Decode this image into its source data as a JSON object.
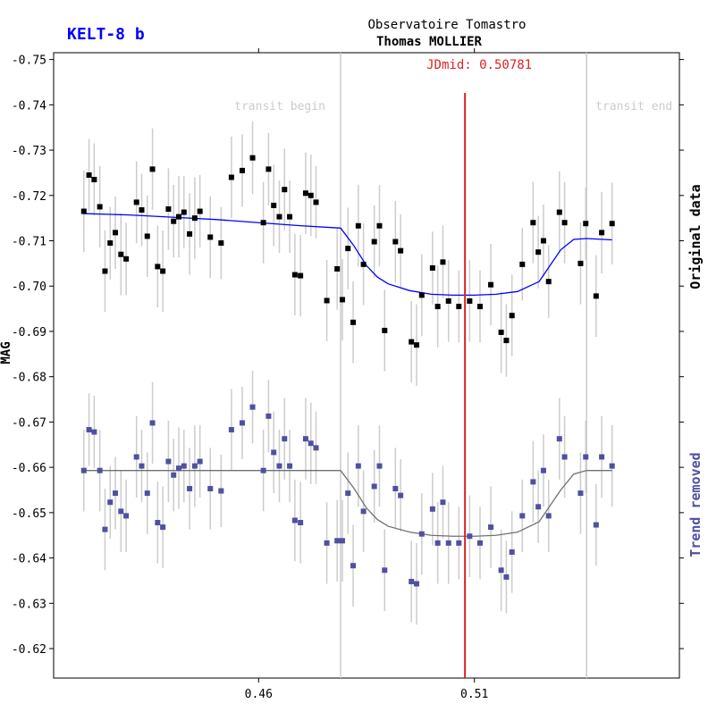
{
  "chart_data": {
    "type": "scatter",
    "title": "KELT-8 b",
    "observatory": "Observatoire Tomastro",
    "observer": "Thomas MOLLIER",
    "jdmid_label": "JDmid: 0.50781",
    "jdmid": 0.50781,
    "transit_begin": 0.479,
    "transit_end": 0.536,
    "transit_begin_label": "transit begin",
    "transit_end_label": "transit end",
    "ylabel": "MAG",
    "xlabel": "",
    "xlim": [
      0.4125,
      0.5575
    ],
    "ylim": [
      -0.7515,
      -0.6135
    ],
    "xticks": [
      0.46,
      0.51
    ],
    "xtick_labels": [
      "0.46",
      "0.51"
    ],
    "yticks": [
      -0.75,
      -0.74,
      -0.73,
      -0.72,
      -0.71,
      -0.7,
      -0.69,
      -0.68,
      -0.67,
      -0.66,
      -0.65,
      -0.64,
      -0.63,
      -0.62
    ],
    "ytick_labels": [
      "-0.75",
      "-0.74",
      "-0.73",
      "-0.72",
      "-0.71",
      "-0.70",
      "-0.69",
      "-0.68",
      "-0.67",
      "-0.66",
      "-0.65",
      "-0.64",
      "-0.63",
      "-0.62"
    ],
    "original_label": "Original data",
    "detrended_label": "Trend removed",
    "colors": {
      "original": "#000000",
      "original_fit": "#0000ff",
      "detrended": "#5050a0",
      "detrended_fit": "#707070",
      "jdmid": "#dd2222",
      "transit": "#cccccc",
      "title": "#0000ff",
      "errorbar": "#cccccc"
    },
    "series": [
      {
        "name": "Original data",
        "x": [
          0.4195,
          0.4207,
          0.4219,
          0.4232,
          0.4244,
          0.4256,
          0.4268,
          0.4281,
          0.4293,
          0.4317,
          0.4329,
          0.4342,
          0.4354,
          0.4366,
          0.4378,
          0.4391,
          0.4403,
          0.4415,
          0.4427,
          0.444,
          0.4452,
          0.4464,
          0.4488,
          0.4513,
          0.4537,
          0.4562,
          0.4586,
          0.4611,
          0.4623,
          0.4635,
          0.4648,
          0.466,
          0.4672,
          0.4684,
          0.4697,
          0.4709,
          0.4721,
          0.4733,
          0.4758,
          0.4782,
          0.4794,
          0.4807,
          0.4819,
          0.4831,
          0.4843,
          0.4868,
          0.488,
          0.4892,
          0.4917,
          0.4929,
          0.4954,
          0.4966,
          0.4978,
          0.5003,
          0.5015,
          0.5027,
          0.504,
          0.5064,
          0.5089,
          0.5113,
          0.5138,
          0.5162,
          0.5174,
          0.5187,
          0.5211,
          0.5236,
          0.5248,
          0.526,
          0.5272,
          0.5297,
          0.5309,
          0.5346,
          0.5358,
          0.5382,
          0.5395,
          0.5419
        ],
        "y": [
          -0.7165,
          -0.7245,
          -0.7235,
          -0.7175,
          -0.7033,
          -0.7095,
          -0.7118,
          -0.707,
          -0.706,
          -0.7185,
          -0.7168,
          -0.711,
          -0.7258,
          -0.7043,
          -0.7033,
          -0.717,
          -0.7143,
          -0.7153,
          -0.7163,
          -0.7115,
          -0.715,
          -0.7165,
          -0.7108,
          -0.7095,
          -0.724,
          -0.7255,
          -0.7283,
          -0.714,
          -0.7258,
          -0.7178,
          -0.7153,
          -0.7213,
          -0.7153,
          -0.7025,
          -0.7023,
          -0.7205,
          -0.72,
          -0.7185,
          -0.6968,
          -0.7038,
          -0.697,
          -0.7083,
          -0.692,
          -0.7133,
          -0.7048,
          -0.7098,
          -0.7133,
          -0.6902,
          -0.7098,
          -0.7078,
          -0.6877,
          -0.687,
          -0.698,
          -0.704,
          -0.6955,
          -0.7053,
          -0.6967,
          -0.6955,
          -0.6967,
          -0.6955,
          -0.7003,
          -0.6898,
          -0.688,
          -0.6935,
          -0.7048,
          -0.714,
          -0.7075,
          -0.71,
          -0.701,
          -0.7163,
          -0.714,
          -0.705,
          -0.7138,
          -0.6978,
          -0.7118,
          -0.7138
        ],
        "errors": [
          0.009,
          0.008,
          0.008,
          0.009,
          0.009,
          0.008,
          0.008,
          0.009,
          0.008,
          0.009,
          0.008,
          0.009,
          0.009,
          0.009,
          0.009,
          0.009,
          0.008,
          0.009,
          0.008,
          0.009,
          0.009,
          0.008,
          0.009,
          0.008,
          0.009,
          0.008,
          0.008,
          0.009,
          0.008,
          0.009,
          0.008,
          0.009,
          0.008,
          0.009,
          0.009,
          0.009,
          0.009,
          0.008,
          0.009,
          0.009,
          0.009,
          0.009,
          0.009,
          0.009,
          0.009,
          0.008,
          0.009,
          0.009,
          0.009,
          0.008,
          0.009,
          0.009,
          0.009,
          0.008,
          0.009,
          0.008,
          0.009,
          0.008,
          0.009,
          0.008,
          0.009,
          0.009,
          0.008,
          0.009,
          0.008,
          0.009,
          0.008,
          0.008,
          0.008,
          0.009,
          0.009,
          0.009,
          0.008,
          0.009,
          0.009,
          0.009
        ]
      },
      {
        "name": "Trend removed",
        "x": [
          0.4195,
          0.4207,
          0.4219,
          0.4232,
          0.4244,
          0.4256,
          0.4268,
          0.4281,
          0.4293,
          0.4317,
          0.4329,
          0.4342,
          0.4354,
          0.4366,
          0.4378,
          0.4391,
          0.4403,
          0.4415,
          0.4427,
          0.444,
          0.4452,
          0.4464,
          0.4488,
          0.4513,
          0.4537,
          0.4562,
          0.4586,
          0.4611,
          0.4623,
          0.4635,
          0.4648,
          0.466,
          0.4672,
          0.4684,
          0.4697,
          0.4709,
          0.4721,
          0.4733,
          0.4758,
          0.4782,
          0.4794,
          0.4807,
          0.4819,
          0.4831,
          0.4843,
          0.4868,
          0.488,
          0.4892,
          0.4917,
          0.4929,
          0.4954,
          0.4966,
          0.4978,
          0.5003,
          0.5015,
          0.5027,
          0.504,
          0.5064,
          0.5089,
          0.5113,
          0.5138,
          0.5162,
          0.5174,
          0.5187,
          0.5211,
          0.5236,
          0.5248,
          0.526,
          0.5272,
          0.5297,
          0.5309,
          0.5346,
          0.5358,
          0.5382,
          0.5395,
          0.5419
        ],
        "y": [
          -0.6593,
          -0.6683,
          -0.6678,
          -0.6593,
          -0.6463,
          -0.6523,
          -0.6543,
          -0.6503,
          -0.6493,
          -0.6623,
          -0.6603,
          -0.6543,
          -0.6698,
          -0.6478,
          -0.6468,
          -0.6613,
          -0.6583,
          -0.6598,
          -0.6603,
          -0.6553,
          -0.6603,
          -0.6613,
          -0.6553,
          -0.6548,
          -0.6683,
          -0.6698,
          -0.6733,
          -0.6593,
          -0.6713,
          -0.6633,
          -0.6603,
          -0.6663,
          -0.6603,
          -0.6483,
          -0.6478,
          -0.6663,
          -0.6653,
          -0.6643,
          -0.6433,
          -0.6438,
          -0.6438,
          -0.6543,
          -0.6383,
          -0.6603,
          -0.6503,
          -0.6558,
          -0.6603,
          -0.6373,
          -0.6553,
          -0.6538,
          -0.6348,
          -0.6343,
          -0.6453,
          -0.6508,
          -0.6433,
          -0.6523,
          -0.6433,
          -0.6433,
          -0.6448,
          -0.6433,
          -0.6468,
          -0.6373,
          -0.6358,
          -0.6413,
          -0.6493,
          -0.6568,
          -0.6513,
          -0.6593,
          -0.6493,
          -0.6663,
          -0.6623,
          -0.6543,
          -0.6623,
          -0.6473,
          -0.6623,
          -0.6603
        ],
        "errors": [
          0.009,
          0.008,
          0.008,
          0.009,
          0.009,
          0.008,
          0.008,
          0.009,
          0.008,
          0.009,
          0.008,
          0.009,
          0.009,
          0.009,
          0.009,
          0.009,
          0.008,
          0.009,
          0.008,
          0.009,
          0.009,
          0.008,
          0.009,
          0.008,
          0.009,
          0.008,
          0.008,
          0.009,
          0.008,
          0.009,
          0.008,
          0.009,
          0.008,
          0.009,
          0.009,
          0.009,
          0.009,
          0.008,
          0.009,
          0.009,
          0.009,
          0.009,
          0.009,
          0.009,
          0.009,
          0.008,
          0.009,
          0.009,
          0.009,
          0.008,
          0.009,
          0.009,
          0.009,
          0.008,
          0.009,
          0.008,
          0.009,
          0.008,
          0.009,
          0.008,
          0.009,
          0.009,
          0.008,
          0.009,
          0.008,
          0.009,
          0.008,
          0.008,
          0.008,
          0.009,
          0.009,
          0.009,
          0.008,
          0.009,
          0.009,
          0.009
        ]
      }
    ],
    "fits": [
      {
        "name": "Original data fit",
        "x": [
          0.4195,
          0.43,
          0.44,
          0.45,
          0.46,
          0.47,
          0.479,
          0.482,
          0.485,
          0.4875,
          0.49,
          0.495,
          0.5,
          0.505,
          0.51,
          0.515,
          0.52,
          0.525,
          0.5275,
          0.53,
          0.533,
          0.536,
          0.5419
        ],
        "y": [
          -0.716,
          -0.7157,
          -0.7152,
          -0.7147,
          -0.714,
          -0.7133,
          -0.7128,
          -0.709,
          -0.7045,
          -0.702,
          -0.7005,
          -0.699,
          -0.6982,
          -0.698,
          -0.698,
          -0.6982,
          -0.6988,
          -0.701,
          -0.7045,
          -0.708,
          -0.7103,
          -0.7105,
          -0.7102
        ]
      },
      {
        "name": "Trend removed fit",
        "x": [
          0.4195,
          0.479,
          0.482,
          0.485,
          0.4875,
          0.49,
          0.495,
          0.5,
          0.505,
          0.51,
          0.515,
          0.52,
          0.525,
          0.5275,
          0.53,
          0.533,
          0.536,
          0.5419
        ],
        "y": [
          -0.6593,
          -0.6593,
          -0.6555,
          -0.651,
          -0.6485,
          -0.647,
          -0.6457,
          -0.645,
          -0.6448,
          -0.6448,
          -0.645,
          -0.6457,
          -0.648,
          -0.6515,
          -0.655,
          -0.6585,
          -0.6593,
          -0.6593
        ]
      }
    ]
  }
}
